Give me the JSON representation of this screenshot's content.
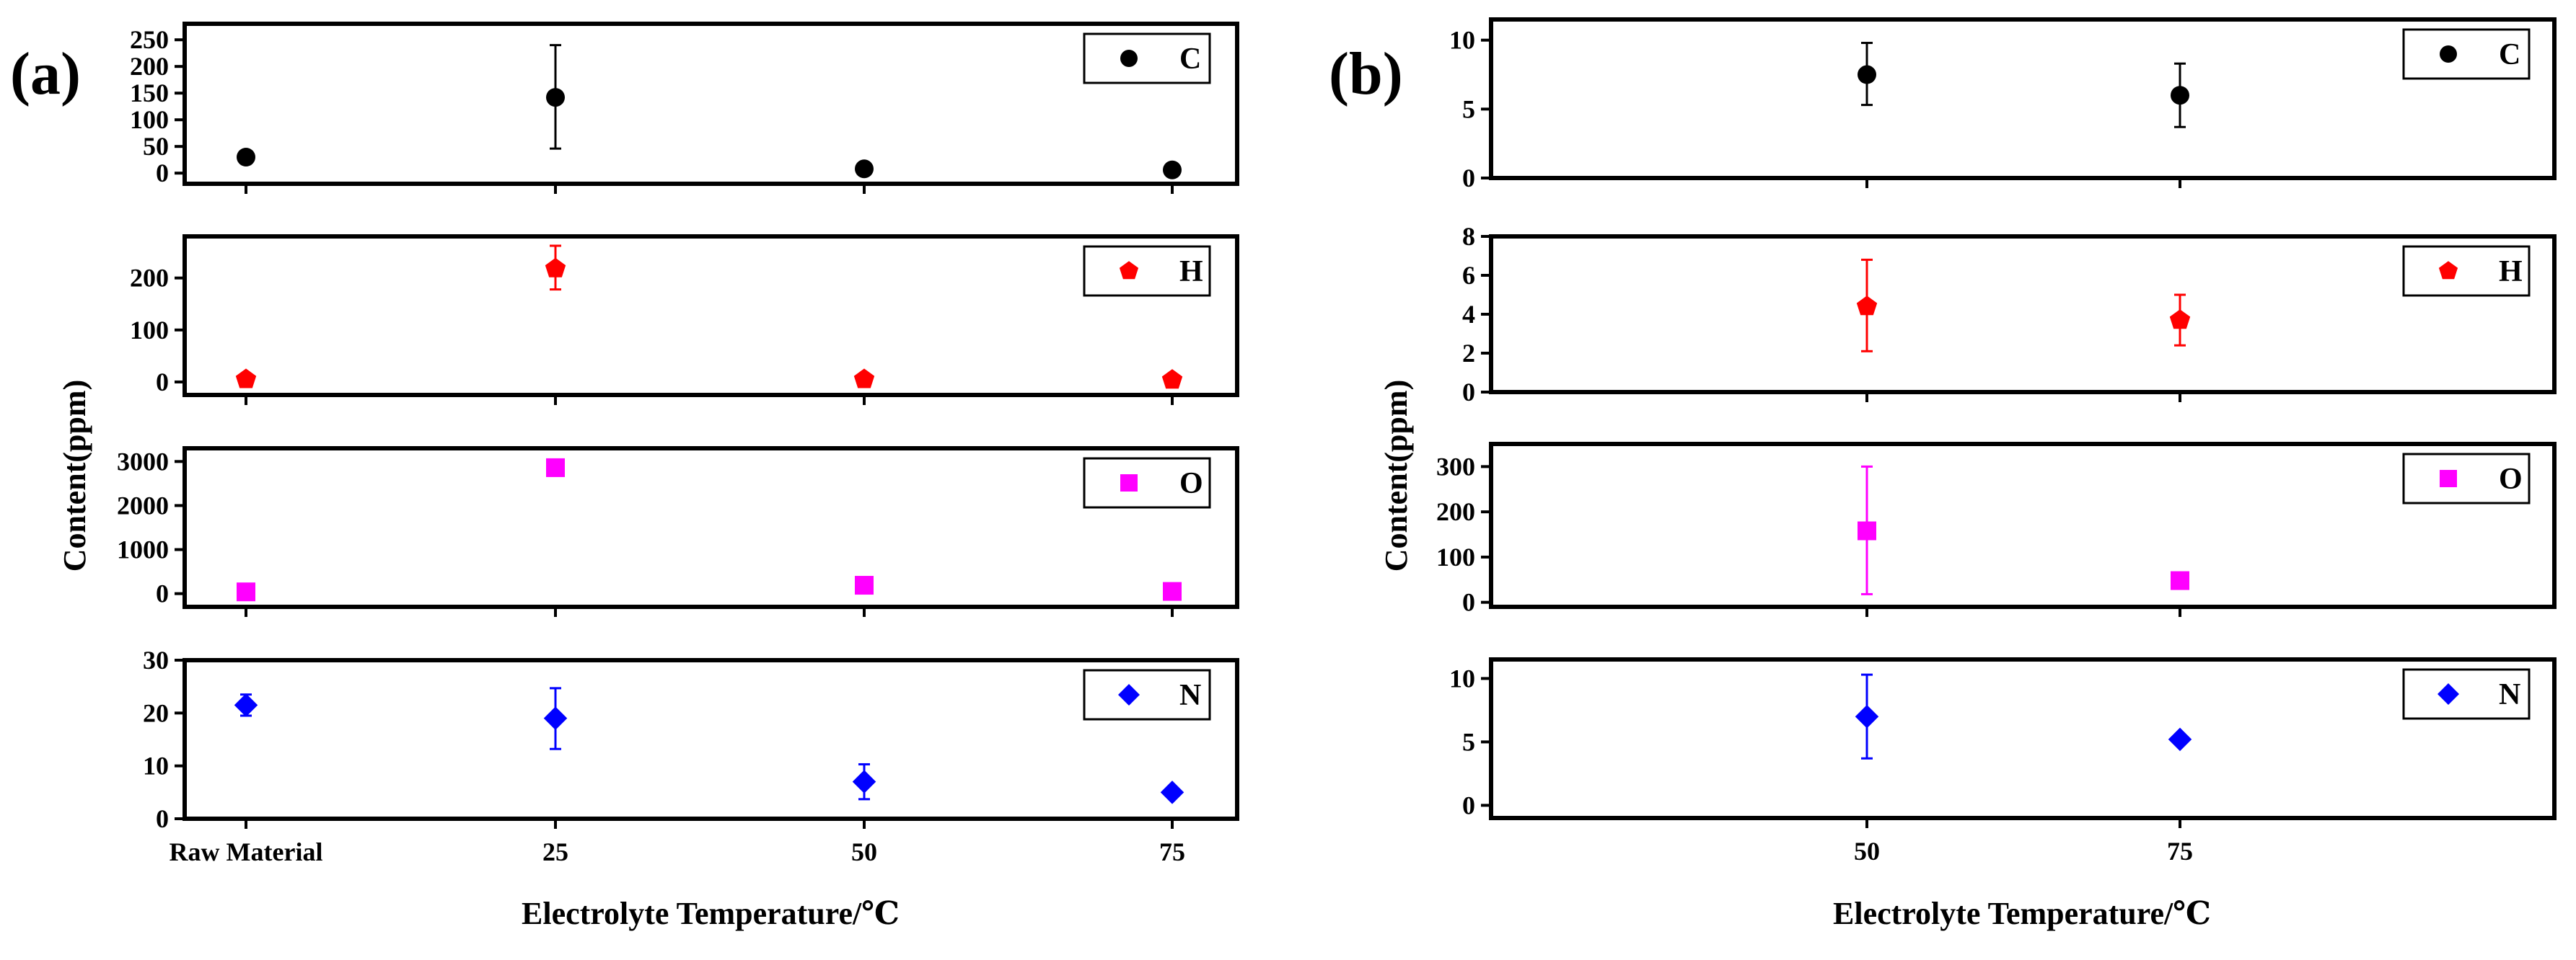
{
  "figure": {
    "xlabel": "Electrolyte Temperature/℃",
    "ylabel": "Content(ppm)"
  },
  "chart_data": [
    {
      "type": "scatter",
      "panel": "(a)",
      "categories": [
        "Raw Material",
        "25",
        "50",
        "75"
      ],
      "xlabel": "Electrolyte Temperature/℃",
      "ylabel": "Content(ppm)",
      "subplots": [
        {
          "element": "C",
          "color": "#000000",
          "marker": "circle",
          "ylim": [
            -20,
            280
          ],
          "yticks": [
            0,
            50,
            100,
            150,
            200,
            250
          ],
          "values": [
            30,
            142,
            8,
            6
          ],
          "error_low": [
            30,
            46,
            8,
            6
          ],
          "error_high": [
            30,
            240,
            8,
            6
          ]
        },
        {
          "element": "H",
          "color": "#ff0000",
          "marker": "pentagon",
          "ylim": [
            -25,
            280
          ],
          "yticks": [
            0,
            100,
            200
          ],
          "values": [
            5,
            218,
            5,
            4
          ],
          "error_low": [
            5,
            178,
            5,
            4
          ],
          "error_high": [
            5,
            262,
            5,
            4
          ]
        },
        {
          "element": "O",
          "color": "#ff00ff",
          "marker": "square",
          "ylim": [
            -300,
            3300
          ],
          "yticks": [
            0,
            1000,
            2000,
            3000
          ],
          "values": [
            40,
            2860,
            190,
            50
          ],
          "error_low": [
            40,
            2760,
            190,
            50
          ],
          "error_high": [
            40,
            2960,
            190,
            50
          ]
        },
        {
          "element": "N",
          "color": "#0000ff",
          "marker": "diamond",
          "ylim": [
            0,
            30
          ],
          "yticks": [
            0,
            10,
            20,
            30
          ],
          "values": [
            21.5,
            19,
            7,
            5
          ],
          "error_low": [
            19.5,
            13.2,
            3.7,
            5
          ],
          "error_high": [
            23.5,
            24.7,
            10.3,
            5
          ]
        }
      ]
    },
    {
      "type": "scatter",
      "panel": "(b)",
      "categories": [
        "50",
        "75"
      ],
      "xlabel": "Electrolyte Temperature/℃",
      "ylabel": "Content(ppm)",
      "subplots": [
        {
          "element": "C",
          "color": "#000000",
          "marker": "circle",
          "ylim": [
            0,
            11.5
          ],
          "yticks": [
            0,
            5,
            10
          ],
          "values": [
            7.5,
            6
          ],
          "error_low": [
            5.3,
            3.7
          ],
          "error_high": [
            9.8,
            8.3
          ]
        },
        {
          "element": "H",
          "color": "#ff0000",
          "marker": "pentagon",
          "ylim": [
            0,
            8
          ],
          "yticks": [
            0,
            2,
            4,
            6,
            8
          ],
          "values": [
            4.4,
            3.7
          ],
          "error_low": [
            2.1,
            2.4
          ],
          "error_high": [
            6.8,
            5
          ]
        },
        {
          "element": "O",
          "color": "#ff00ff",
          "marker": "square",
          "ylim": [
            -10,
            350
          ],
          "yticks": [
            0,
            100,
            200,
            300
          ],
          "values": [
            158,
            48
          ],
          "error_low": [
            18,
            38
          ],
          "error_high": [
            300,
            58
          ]
        },
        {
          "element": "N",
          "color": "#0000ff",
          "marker": "diamond",
          "ylim": [
            -1,
            11.5
          ],
          "yticks": [
            0,
            5,
            10
          ],
          "values": [
            7,
            5.2
          ],
          "error_low": [
            3.7,
            5.2
          ],
          "error_high": [
            10.3,
            5.2
          ]
        }
      ]
    }
  ]
}
